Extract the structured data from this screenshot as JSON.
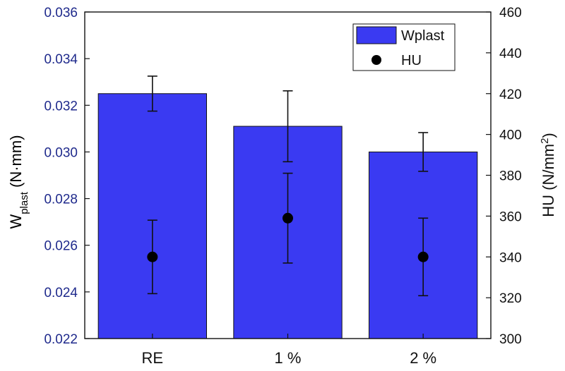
{
  "chart_data": {
    "type": "bar",
    "categories": [
      "RE",
      "1 %",
      "2 %"
    ],
    "left_axis": {
      "label_main": "W",
      "label_sub": "plast",
      "label_unit": " (N·mm)",
      "ylim": [
        0.022,
        0.036
      ],
      "ticks": [
        "0.022",
        "0.024",
        "0.026",
        "0.028",
        "0.030",
        "0.032",
        "0.034",
        "0.036"
      ],
      "color": "#1f2a8c"
    },
    "right_axis": {
      "label_main": "HU (N/mm",
      "label_sup": "2",
      "label_end": ")",
      "ylim": [
        300,
        460
      ],
      "ticks": [
        "300",
        "320",
        "340",
        "360",
        "380",
        "400",
        "420",
        "440",
        "460"
      ],
      "color": "#111111"
    },
    "series": [
      {
        "name": "Wplast",
        "kind": "bar",
        "axis": "left",
        "color": "#3a3af2",
        "values": [
          0.0325,
          0.0311,
          0.03
        ],
        "error": [
          0.00075,
          0.00152,
          0.00083
        ]
      },
      {
        "name": "HU",
        "kind": "point",
        "axis": "right",
        "color": "#000000",
        "values": [
          340,
          359,
          340
        ],
        "error": [
          18,
          22,
          19
        ]
      }
    ],
    "legend_position": "top-right",
    "grid": false
  }
}
